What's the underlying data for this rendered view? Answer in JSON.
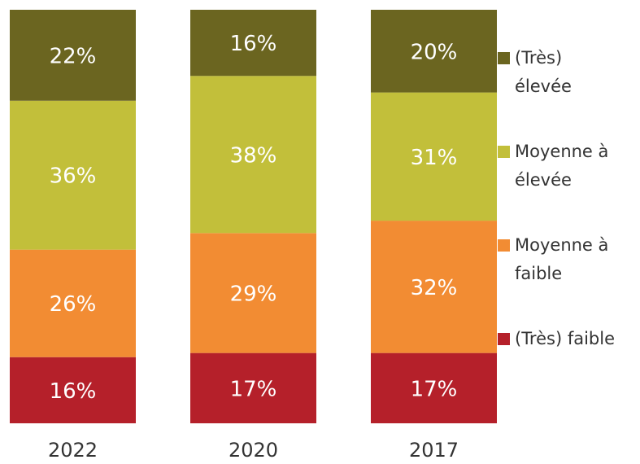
{
  "chart_data": {
    "type": "stacked_bar",
    "categories": [
      "2022",
      "2020",
      "2017"
    ],
    "series": [
      {
        "name": "(Très) faible",
        "color": "#b5202a",
        "values": [
          16,
          17,
          17
        ],
        "value_labels": [
          "16%",
          "17%",
          "17%"
        ]
      },
      {
        "name": "Moyenne à faible",
        "color": "#f28c33",
        "values": [
          26,
          29,
          32
        ],
        "value_labels": [
          "26%",
          "29%",
          "32%"
        ]
      },
      {
        "name": "Moyenne à élevée",
        "color": "#c2bf3a",
        "values": [
          36,
          38,
          31
        ],
        "value_labels": [
          "36%",
          "38%",
          "31%"
        ]
      },
      {
        "name": "(Très) élevée",
        "color": "#6b6520",
        "values": [
          22,
          16,
          20
        ],
        "value_labels": [
          "22%",
          "16%",
          "20%"
        ]
      }
    ]
  }
}
